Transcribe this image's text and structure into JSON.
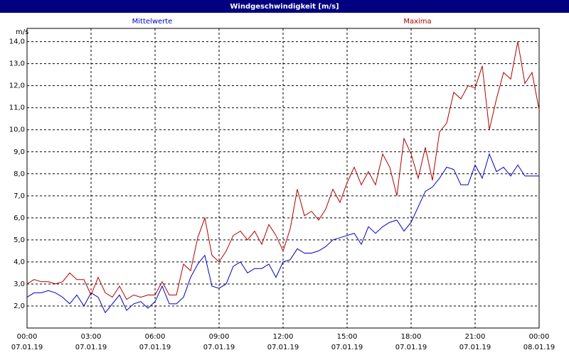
{
  "chart_data": {
    "type": "line",
    "title": "Windgeschwindigkeit [m/s]",
    "y_label": "m/s",
    "x": [
      0,
      20,
      40,
      60,
      80,
      100,
      120,
      140,
      160,
      180,
      200,
      220,
      240,
      260,
      280,
      300,
      320,
      340,
      360,
      380,
      400,
      420,
      440,
      460,
      480,
      500,
      520,
      540,
      560,
      580,
      600,
      620,
      640,
      660,
      680,
      700,
      720,
      740,
      760,
      780,
      800,
      820,
      840,
      860,
      880,
      900,
      920,
      940,
      960,
      980,
      1000,
      1020,
      1040,
      1060,
      1080,
      1100,
      1120,
      1140,
      1160,
      1180,
      1200,
      1220,
      1240,
      1260,
      1280,
      1300,
      1320,
      1340,
      1360,
      1380,
      1400,
      1420,
      1440
    ],
    "series": [
      {
        "name": "Mittelwerte",
        "color": "#0000c0",
        "values": [
          2.4,
          2.6,
          2.6,
          2.7,
          2.6,
          2.4,
          2.1,
          2.5,
          2.0,
          2.6,
          2.4,
          1.7,
          2.1,
          2.5,
          1.8,
          2.1,
          2.2,
          1.9,
          2.2,
          2.9,
          2.1,
          2.1,
          2.4,
          3.3,
          3.9,
          4.3,
          2.9,
          2.8,
          3.0,
          3.8,
          4.0,
          3.5,
          3.7,
          3.7,
          3.9,
          3.3,
          4.0,
          4.1,
          4.6,
          4.4,
          4.4,
          4.5,
          4.7,
          5.0,
          5.1,
          5.2,
          5.3,
          4.8,
          5.6,
          5.3,
          5.6,
          5.8,
          5.9,
          5.4,
          5.8,
          6.5,
          7.2,
          7.4,
          7.8,
          8.3,
          8.2,
          7.5,
          7.5,
          8.4,
          7.8,
          8.9,
          8.1,
          8.3,
          7.9,
          8.4,
          7.9,
          7.9,
          7.9
        ]
      },
      {
        "name": "Maxima",
        "color": "#b00000",
        "values": [
          3.0,
          3.2,
          3.1,
          3.1,
          3.0,
          3.1,
          3.5,
          3.2,
          3.2,
          2.5,
          3.3,
          2.6,
          2.4,
          2.9,
          2.3,
          2.5,
          2.4,
          2.5,
          2.5,
          3.1,
          2.5,
          2.5,
          3.9,
          3.6,
          5.1,
          6.0,
          4.3,
          4.0,
          4.5,
          5.2,
          5.4,
          5.0,
          5.4,
          4.8,
          5.7,
          5.2,
          4.5,
          5.5,
          7.3,
          6.1,
          6.3,
          5.9,
          6.4,
          7.3,
          6.7,
          7.6,
          8.3,
          7.5,
          8.1,
          7.5,
          8.9,
          8.3,
          7.0,
          9.6,
          8.9,
          7.8,
          9.2,
          7.7,
          9.9,
          10.3,
          11.7,
          11.4,
          12.0,
          11.9,
          12.9,
          10.0,
          11.4,
          12.6,
          12.3,
          14.0,
          12.1,
          12.6,
          10.9
        ]
      }
    ],
    "xlim": [
      0,
      1440
    ],
    "xticks": [
      {
        "value": 0,
        "label": "00:00",
        "sublabel": "07.01.19"
      },
      {
        "value": 180,
        "label": "03:00",
        "sublabel": "07.01.19"
      },
      {
        "value": 360,
        "label": "06:00",
        "sublabel": "07.01.19"
      },
      {
        "value": 540,
        "label": "09:00",
        "sublabel": "07.01.19"
      },
      {
        "value": 720,
        "label": "12:00",
        "sublabel": "07.01.19"
      },
      {
        "value": 900,
        "label": "15:00",
        "sublabel": "07.01.19"
      },
      {
        "value": 1080,
        "label": "18:00",
        "sublabel": "07.01.19"
      },
      {
        "value": 1260,
        "label": "21:00",
        "sublabel": "07.01.19"
      },
      {
        "value": 1440,
        "label": "00:00",
        "sublabel": "08.01.19"
      }
    ],
    "ylim": [
      1,
      14.6
    ],
    "yticks": [
      {
        "value": 2,
        "label": "2,0"
      },
      {
        "value": 3,
        "label": "3,0"
      },
      {
        "value": 4,
        "label": "4,0"
      },
      {
        "value": 5,
        "label": "5,0"
      },
      {
        "value": 6,
        "label": "6,0"
      },
      {
        "value": 7,
        "label": "7,0"
      },
      {
        "value": 8,
        "label": "8,0"
      },
      {
        "value": 9,
        "label": "9,0"
      },
      {
        "value": 10,
        "label": "10,0"
      },
      {
        "value": 11,
        "label": "11,0"
      },
      {
        "value": 12,
        "label": "12,0"
      },
      {
        "value": 13,
        "label": "13,0"
      },
      {
        "value": 14,
        "label": "14,0"
      }
    ],
    "grid": true
  }
}
